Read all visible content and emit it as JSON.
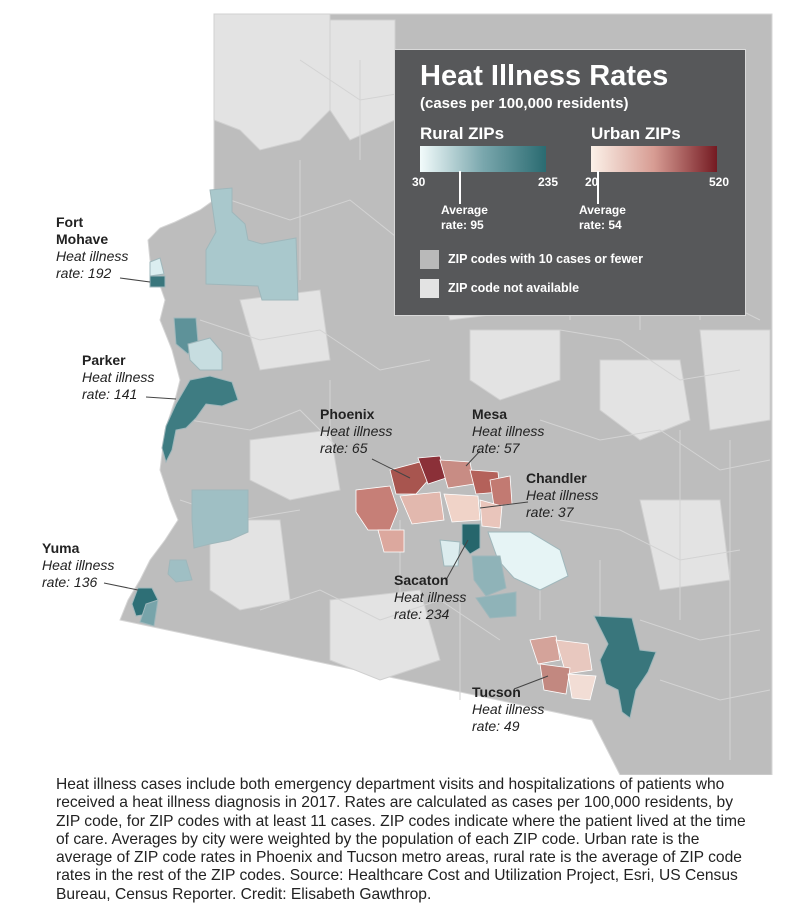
{
  "legend": {
    "title": "Heat Illness Rates",
    "subtitle": "(cases per 100,000 residents)",
    "rural": {
      "heading": "Rural ZIPs",
      "min": "30",
      "max": "235",
      "average_line1": "Average",
      "average_line2": "rate: 95",
      "average_value": 95,
      "colors": [
        "#f2fbfb",
        "#2a6b71"
      ]
    },
    "urban": {
      "heading": "Urban ZIPs",
      "min": "20",
      "max": "520",
      "average_line1": "Average",
      "average_line2": "rate: 54",
      "average_value": 54,
      "colors": [
        "#fbf1e8",
        "#741a22"
      ]
    },
    "few_cases": {
      "label": "ZIP codes with 10 cases or fewer",
      "color": "#b9b9b9"
    },
    "not_available": {
      "label": "ZIP code not available",
      "color": "#e3e3e3"
    }
  },
  "callouts": {
    "fort_mohave": {
      "name_line1": "Fort",
      "name_line2": "Mohave",
      "label": "Heat illness",
      "rate": "rate: 192"
    },
    "parker": {
      "name": "Parker",
      "label": "Heat illness",
      "rate": "rate: 141"
    },
    "yuma": {
      "name": "Yuma",
      "label": "Heat illness",
      "rate": "rate: 136"
    },
    "phoenix": {
      "name": "Phoenix",
      "label": "Heat illness",
      "rate": "rate: 65"
    },
    "mesa": {
      "name": "Mesa",
      "label": "Heat illness",
      "rate": "rate: 57"
    },
    "chandler": {
      "name": "Chandler",
      "label": "Heat illness",
      "rate": "rate: 37"
    },
    "sacaton": {
      "name": "Sacaton",
      "label": "Heat illness",
      "rate": "rate: 234"
    },
    "tucson": {
      "name": "Tucson",
      "label": "Heat illness",
      "rate": "rate: 49"
    }
  },
  "caption": "Heat illness cases include both emergency department visits and hospitalizations of patients who received a heat illness diagnosis in 2017. Rates are calculated as cases per 100,000 residents, by ZIP code, for ZIP codes with at least 11 cases. ZIP codes indicate where the patient lived at the time of care. Averages by city were weighted by the population of each ZIP code. Urban rate is the average of ZIP code rates in Phoenix and Tucson metro areas, rural rate is the average of ZIP code rates in the rest of the ZIP codes. Source: Healthcare Cost and Utilization Project, Esri, US Census Bureau, Census Reporter. Credit: Elisabeth Gawthrop."
}
